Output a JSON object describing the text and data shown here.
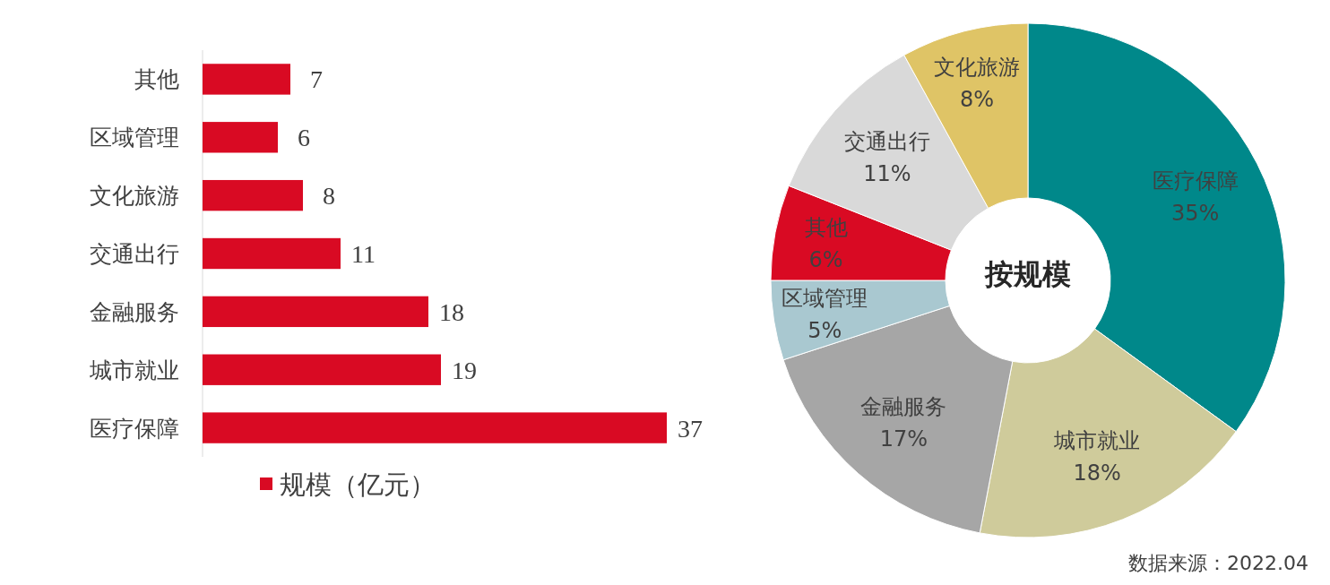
{
  "chart_data": [
    {
      "type": "bar",
      "orientation": "horizontal",
      "categories": [
        "其他",
        "区域管理",
        "文化旅游",
        "交通出行",
        "金融服务",
        "城市就业",
        "医疗保障"
      ],
      "series": [
        {
          "name": "规模（亿元）",
          "color": "#d90a23",
          "values": [
            7,
            6,
            8,
            11,
            18,
            19,
            37
          ]
        }
      ],
      "data_labels": true,
      "legend": "bottom"
    },
    {
      "type": "donut",
      "categories": [
        "医疗保障",
        "城市就业",
        "金融服务",
        "区域管理",
        "其他",
        "交通出行",
        "文化旅游"
      ],
      "values": [
        35,
        18,
        17,
        5,
        6,
        11,
        8
      ],
      "colors": [
        "#00888a",
        "#cfcb9b",
        "#a6a6a6",
        "#a9c8d0",
        "#d90a23",
        "#d9d9d9",
        "#dfc466"
      ],
      "value_labels": [
        "35%",
        "18%",
        "17%",
        "5%",
        "6%",
        "11%",
        "8%"
      ],
      "annotations": [
        "按规模",
        "数据来源：2022.04"
      ]
    }
  ]
}
